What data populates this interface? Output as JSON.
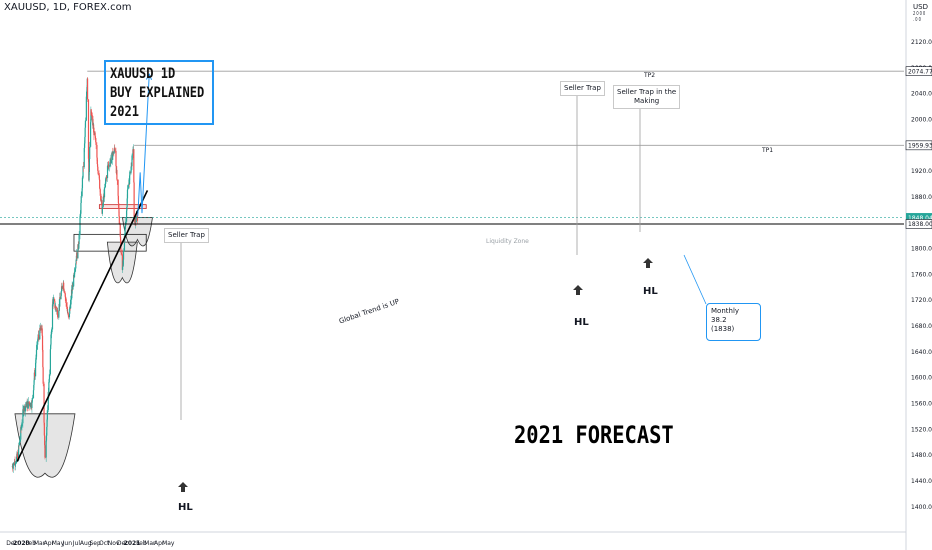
{
  "header": {
    "symbol": "XAUUSD, 1D, FOREX.com",
    "currency": "USD",
    "scale_label": "2 0 0 0 . 0 0"
  },
  "title_box": {
    "line1": "XAUUSD 1D",
    "line2": "BUY EXPLAINED",
    "line3": "2021"
  },
  "forecast_text": "2021 FORECAST",
  "annotations": {
    "seller_trap_1": "Seller Trap",
    "seller_trap_2": "Seller Trap",
    "seller_trap_3_line1": "Seller Trap in the",
    "seller_trap_3_line2": "Making",
    "hl_1": "HL",
    "hl_2": "HL",
    "hl_3": "HL",
    "tp1": "TP1",
    "tp2": "TP2",
    "liquidity_zone": "Liquidity Zone",
    "trend": "Global Trend is UP",
    "monthly_line1": "Monthly 38.2",
    "monthly_line2": "(1838)"
  },
  "colors": {
    "up": "#26a69a",
    "down": "#ef5350",
    "accent": "#2196f3",
    "trend": "#000000",
    "axis_text": "#131722"
  },
  "chart_data": {
    "type": "candlestick",
    "title": "XAUUSD, 1D, FOREX.com",
    "xlabel": "",
    "ylabel": "USD",
    "ylim": [
      1400,
      2140
    ],
    "xlim": [
      "2019-12-01",
      "2021-05-31"
    ],
    "yticks": [
      1400,
      1440,
      1480,
      1520,
      1560,
      1600,
      1640,
      1680,
      1720,
      1760,
      1800,
      1840,
      1880,
      1920,
      1960,
      2000,
      2040,
      2080,
      2120
    ],
    "xticks": [
      {
        "label": "Dec",
        "date": "2019-12-01"
      },
      {
        "label": "2020",
        "date": "2020-01-01"
      },
      {
        "label": "Feb",
        "date": "2020-02-01"
      },
      {
        "label": "Mar",
        "date": "2020-03-01"
      },
      {
        "label": "Apr",
        "date": "2020-04-01"
      },
      {
        "label": "May",
        "date": "2020-05-01"
      },
      {
        "label": "Jun",
        "date": "2020-06-01"
      },
      {
        "label": "Jul",
        "date": "2020-07-01"
      },
      {
        "label": "Aug",
        "date": "2020-08-01"
      },
      {
        "label": "Sep",
        "date": "2020-09-01"
      },
      {
        "label": "Oct",
        "date": "2020-10-01"
      },
      {
        "label": "Nov",
        "date": "2020-11-01"
      },
      {
        "label": "Dec",
        "date": "2020-12-01"
      },
      {
        "label": "2021",
        "date": "2021-01-01"
      },
      {
        "label": "Feb",
        "date": "2021-02-01"
      },
      {
        "label": "Mar",
        "date": "2021-03-01"
      },
      {
        "label": "Apr",
        "date": "2021-04-01"
      },
      {
        "label": "May",
        "date": "2021-05-01"
      }
    ],
    "price_path": [
      [
        "2019-12-01",
        1462
      ],
      [
        "2019-12-20",
        1478
      ],
      [
        "2020-01-08",
        1552
      ],
      [
        "2020-01-20",
        1558
      ],
      [
        "2020-02-05",
        1560
      ],
      [
        "2020-02-24",
        1660
      ],
      [
        "2020-03-09",
        1680
      ],
      [
        "2020-03-19",
        1471
      ],
      [
        "2020-04-01",
        1590
      ],
      [
        "2020-04-14",
        1720
      ],
      [
        "2020-05-01",
        1700
      ],
      [
        "2020-05-18",
        1750
      ],
      [
        "2020-06-05",
        1690
      ],
      [
        "2020-06-25",
        1770
      ],
      [
        "2020-07-08",
        1805
      ],
      [
        "2020-07-28",
        1960
      ],
      [
        "2020-08-06",
        2067
      ],
      [
        "2020-08-11",
        1910
      ],
      [
        "2020-08-18",
        2010
      ],
      [
        "2020-09-01",
        1970
      ],
      [
        "2020-09-24",
        1860
      ],
      [
        "2020-10-12",
        1925
      ],
      [
        "2020-11-06",
        1955
      ],
      [
        "2020-11-30",
        1765
      ],
      [
        "2020-12-17",
        1885
      ],
      [
        "2021-01-06",
        1955
      ],
      [
        "2021-01-08",
        1840
      ],
      [
        "2021-01-19",
        1848
      ]
    ],
    "levels": [
      {
        "name": "TP2",
        "value": 2074.77,
        "label": "2074.77"
      },
      {
        "name": "TP1",
        "value": 1959.93,
        "label": "1959.93"
      },
      {
        "name": "Current",
        "value": 1848.04,
        "label": "1848.04"
      },
      {
        "name": "Monthly 38.2",
        "value": 1838.0,
        "label": "1838.00"
      }
    ],
    "zones": [
      {
        "name": "Liquidity Zone",
        "from": "2020-06-23",
        "to": "2021-02-17",
        "low": 1796,
        "high": 1822
      },
      {
        "name": "Resistance",
        "from": "2020-09-15",
        "to": "2021-02-17",
        "low": 1862,
        "high": 1868
      }
    ],
    "trendline": [
      [
        "2019-12-18",
        1470
      ],
      [
        "2021-02-21",
        1890
      ]
    ],
    "projection": [
      [
        "2021-01-20",
        1850
      ],
      [
        "2021-01-28",
        1918
      ],
      [
        "2021-02-03",
        1855
      ],
      [
        "2021-02-27",
        2070
      ]
    ]
  }
}
